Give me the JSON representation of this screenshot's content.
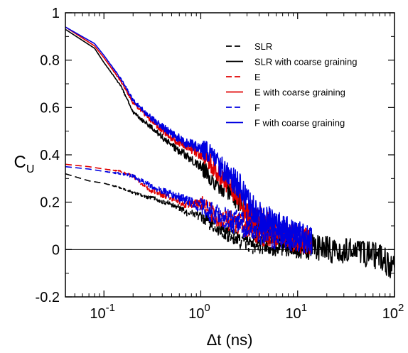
{
  "chart_data": {
    "type": "line",
    "xlabel": "Δt (ns)",
    "ylabel_main": "C",
    "ylabel_sub": "U",
    "x_scale": "log",
    "xlim": [
      0.04,
      100
    ],
    "ylim": [
      -0.2,
      1.0
    ],
    "x_ticks": [
      {
        "value": 0.1,
        "base": "10",
        "exp": "-1"
      },
      {
        "value": 1,
        "base": "10",
        "exp": "0"
      },
      {
        "value": 10,
        "base": "10",
        "exp": "1"
      },
      {
        "value": 100,
        "base": "10",
        "exp": "2"
      }
    ],
    "y_ticks": [
      {
        "value": -0.2,
        "label": "-0.2"
      },
      {
        "value": 0,
        "label": "0"
      },
      {
        "value": 0.2,
        "label": "0.2"
      },
      {
        "value": 0.4,
        "label": "0.4"
      },
      {
        "value": 0.6,
        "label": "0.6"
      },
      {
        "value": 0.8,
        "label": "0.8"
      },
      {
        "value": 1.0,
        "label": "1"
      }
    ],
    "zero_line": true,
    "legend_position": "top-right",
    "series": [
      {
        "name": "SLR",
        "color": "#000000",
        "style": "dashed",
        "noise": 0.03,
        "x": [
          0.04,
          0.07,
          0.1,
          0.15,
          0.2,
          0.3,
          0.5,
          0.7,
          1.0,
          1.5,
          2.0,
          3.0,
          5.0,
          7.0,
          10.0
        ],
        "y": [
          0.32,
          0.29,
          0.28,
          0.26,
          0.24,
          0.22,
          0.19,
          0.16,
          0.14,
          0.09,
          0.06,
          0.03,
          0.02,
          0.02,
          0.01
        ]
      },
      {
        "name": "SLR with coarse graining",
        "color": "#000000",
        "style": "solid",
        "noise": 0.035,
        "x": [
          0.04,
          0.08,
          0.1,
          0.15,
          0.2,
          0.3,
          0.5,
          0.7,
          1.0,
          1.3,
          1.6,
          2.0,
          3.0,
          5.0,
          10.0,
          20.0,
          40.0,
          70.0,
          100.0
        ],
        "y": [
          0.93,
          0.85,
          0.79,
          0.69,
          0.58,
          0.52,
          0.44,
          0.4,
          0.35,
          0.3,
          0.27,
          0.25,
          0.15,
          0.07,
          0.02,
          0.0,
          -0.01,
          -0.03,
          -0.08
        ]
      },
      {
        "name": "E",
        "color": "#e00000",
        "style": "dashed",
        "noise": 0.035,
        "x": [
          0.04,
          0.07,
          0.1,
          0.15,
          0.2,
          0.3,
          0.5,
          0.7,
          1.0,
          1.5,
          2.0,
          3.0,
          5.0,
          7.0,
          10.0,
          14.0
        ],
        "y": [
          0.36,
          0.35,
          0.34,
          0.33,
          0.31,
          0.25,
          0.22,
          0.19,
          0.2,
          0.13,
          0.12,
          0.1,
          0.06,
          0.05,
          0.04,
          0.03
        ]
      },
      {
        "name": "E with coarse graining",
        "color": "#e00000",
        "style": "solid",
        "noise": 0.035,
        "x": [
          0.04,
          0.08,
          0.1,
          0.15,
          0.2,
          0.3,
          0.5,
          0.7,
          1.0,
          1.3,
          1.6,
          2.0,
          2.5,
          3.0,
          4.0,
          5.0,
          7.0,
          10.0,
          14.0
        ],
        "y": [
          0.94,
          0.86,
          0.81,
          0.71,
          0.62,
          0.55,
          0.47,
          0.44,
          0.4,
          0.36,
          0.3,
          0.27,
          0.22,
          0.17,
          0.13,
          0.1,
          0.07,
          0.05,
          0.03
        ]
      },
      {
        "name": "F",
        "color": "#0000e0",
        "style": "dashed",
        "noise": 0.04,
        "x": [
          0.04,
          0.07,
          0.1,
          0.15,
          0.2,
          0.3,
          0.5,
          0.7,
          1.0,
          1.5,
          2.0,
          3.0,
          5.0,
          7.0,
          10.0,
          14.0
        ],
        "y": [
          0.35,
          0.34,
          0.33,
          0.32,
          0.31,
          0.27,
          0.23,
          0.21,
          0.18,
          0.15,
          0.13,
          0.1,
          0.07,
          0.06,
          0.05,
          0.04
        ]
      },
      {
        "name": "F with coarse graining",
        "color": "#0000e0",
        "style": "solid",
        "noise": 0.04,
        "x": [
          0.04,
          0.08,
          0.1,
          0.15,
          0.2,
          0.3,
          0.5,
          0.7,
          1.0,
          1.3,
          1.6,
          2.0,
          2.5,
          3.0,
          4.0,
          5.0,
          7.0,
          10.0,
          14.0
        ],
        "y": [
          0.94,
          0.87,
          0.82,
          0.72,
          0.63,
          0.56,
          0.49,
          0.45,
          0.43,
          0.4,
          0.35,
          0.31,
          0.27,
          0.2,
          0.15,
          0.12,
          0.09,
          0.06,
          0.04
        ]
      }
    ]
  }
}
